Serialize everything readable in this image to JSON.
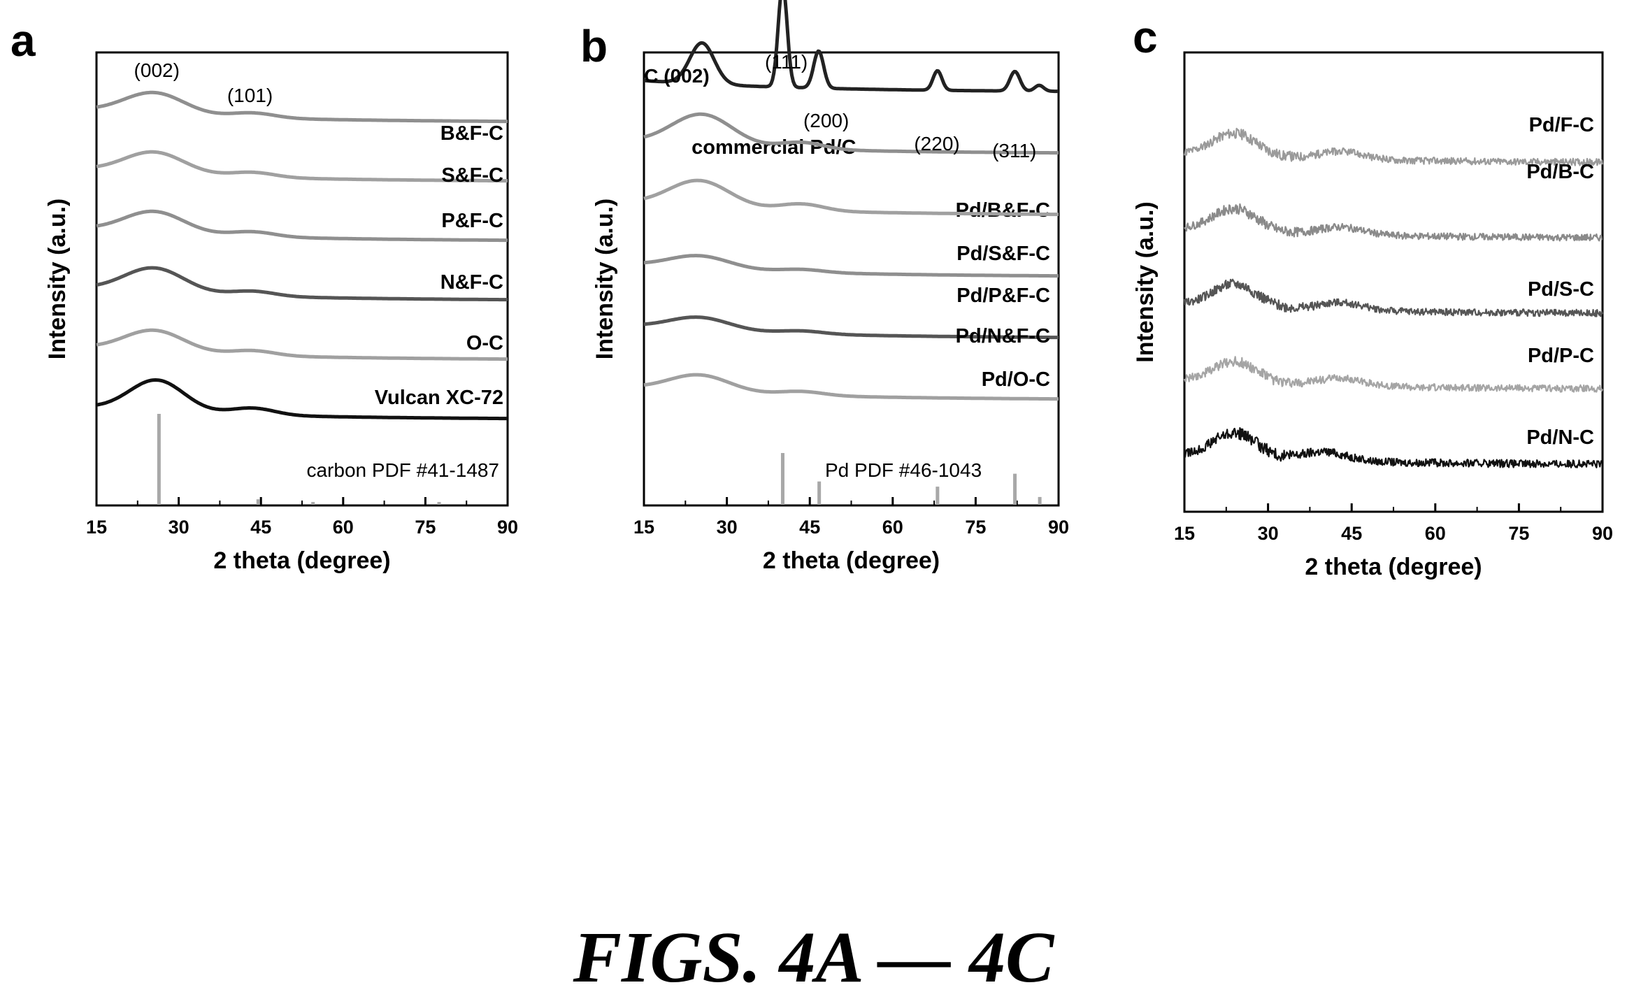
{
  "figure_caption": "FIGS. 4A — 4C",
  "colors": {
    "light": "#8a8a8a",
    "mid": "#a2a2a2",
    "dark": "#555555",
    "black": "#111111",
    "ref": "#a8a8a8"
  },
  "chart_data": [
    {
      "panel": "a",
      "type": "line",
      "xlabel": "2 theta (degree)",
      "ylabel": "Intensity (a.u.)",
      "xlim": [
        15,
        90
      ],
      "xticks": [
        "15",
        "30",
        "45",
        "60",
        "75",
        "90"
      ],
      "y_values": "arbitrary units (no numeric y axis; traces are vertically offset)",
      "peak_labels": [
        {
          "text": "(002)",
          "x": 26
        },
        {
          "text": "(101)",
          "x": 43
        }
      ],
      "series": [
        {
          "name": "B&F-C",
          "color": "#8f8f8f",
          "offset": 5,
          "peaks": [
            {
              "x": 25.5,
              "h": 0.22,
              "w": 5.5
            },
            {
              "x": 43.5,
              "h": 0.05,
              "w": 4
            }
          ],
          "noise": 0
        },
        {
          "name": "S&F-C",
          "color": "#a0a0a0",
          "offset": 4,
          "peaks": [
            {
              "x": 25.5,
              "h": 0.22,
              "w": 5.5
            },
            {
              "x": 43.5,
              "h": 0.05,
              "w": 4
            }
          ],
          "noise": 0
        },
        {
          "name": "P&F-C",
          "color": "#8f8f8f",
          "offset": 3,
          "peaks": [
            {
              "x": 25.5,
              "h": 0.22,
              "w": 5.5
            },
            {
              "x": 43.5,
              "h": 0.05,
              "w": 4
            }
          ],
          "noise": 0
        },
        {
          "name": "N&F-C",
          "color": "#555555",
          "offset": 2,
          "peaks": [
            {
              "x": 25.5,
              "h": 0.25,
              "w": 5.5
            },
            {
              "x": 43.5,
              "h": 0.05,
              "w": 4
            }
          ],
          "noise": 0
        },
        {
          "name": "O-C",
          "color": "#a0a0a0",
          "offset": 1,
          "peaks": [
            {
              "x": 25.5,
              "h": 0.22,
              "w": 5.5
            },
            {
              "x": 43.5,
              "h": 0.05,
              "w": 4
            }
          ],
          "noise": 0
        },
        {
          "name": "Vulcan XC-72",
          "color": "#111111",
          "offset": 0,
          "peaks": [
            {
              "x": 26,
              "h": 0.32,
              "w": 5
            },
            {
              "x": 43.5,
              "h": 0.07,
              "w": 4
            }
          ],
          "noise": 0
        }
      ],
      "reference": {
        "name": "carbon PDF #41-1487",
        "lines": [
          {
            "x": 26.4,
            "h": 1.0
          },
          {
            "x": 44.5,
            "h": 0.06
          },
          {
            "x": 54.5,
            "h": 0.03
          },
          {
            "x": 77.5,
            "h": 0.03
          }
        ]
      }
    },
    {
      "panel": "b",
      "type": "line",
      "xlabel": "2 theta (degree)",
      "ylabel": "Intensity (a.u.)",
      "xlim": [
        15,
        90
      ],
      "xticks": [
        "15",
        "30",
        "45",
        "60",
        "75",
        "90"
      ],
      "y_values": "arbitrary units (no numeric y axis; traces are vertically offset)",
      "peak_labels": [
        {
          "text": "C (002)",
          "x": 26
        },
        {
          "text": "(111)",
          "x": 40
        },
        {
          "text": "(200)",
          "x": 46.7
        },
        {
          "text": "(220)",
          "x": 68
        },
        {
          "text": "(311)",
          "x": 82
        }
      ],
      "series": [
        {
          "name": "commercial Pd/C",
          "color": "#222222",
          "offset": 5,
          "peaks": [
            {
              "x": 25.5,
              "h": 0.42,
              "w": 2.2
            },
            {
              "x": 40.1,
              "h": 1.05,
              "w": 0.8
            },
            {
              "x": 46.6,
              "h": 0.38,
              "w": 0.9
            },
            {
              "x": 68.1,
              "h": 0.2,
              "w": 0.8
            },
            {
              "x": 82.1,
              "h": 0.2,
              "w": 0.9
            },
            {
              "x": 86.5,
              "h": 0.06,
              "w": 0.8
            }
          ],
          "noise": 0
        },
        {
          "name": "Pd/B&F-C",
          "color": "#8f8f8f",
          "offset": 4,
          "peaks": [
            {
              "x": 25.5,
              "h": 0.32,
              "w": 5.5
            },
            {
              "x": 43.5,
              "h": 0.07,
              "w": 4
            }
          ],
          "noise": 0
        },
        {
          "name": "Pd/S&F-C",
          "color": "#a0a0a0",
          "offset": 3,
          "peaks": [
            {
              "x": 25,
              "h": 0.27,
              "w": 5.5
            },
            {
              "x": 43.5,
              "h": 0.07,
              "w": 4
            }
          ],
          "noise": 0
        },
        {
          "name": "Pd/P&F-C",
          "color": "#8f8f8f",
          "offset": 2,
          "peaks": [
            {
              "x": 25,
              "h": 0.13,
              "w": 5.5
            },
            {
              "x": 43.5,
              "h": 0.03,
              "w": 4
            }
          ],
          "noise": 0
        },
        {
          "name": "Pd/N&F-C",
          "color": "#555555",
          "offset": 1,
          "peaks": [
            {
              "x": 25,
              "h": 0.13,
              "w": 5.5
            },
            {
              "x": 43.5,
              "h": 0.03,
              "w": 4
            }
          ],
          "noise": 0
        },
        {
          "name": "Pd/O-C",
          "color": "#a0a0a0",
          "offset": 0,
          "peaks": [
            {
              "x": 25,
              "h": 0.17,
              "w": 5.5
            },
            {
              "x": 43.5,
              "h": 0.04,
              "w": 4
            }
          ],
          "noise": 0
        }
      ],
      "reference": {
        "name": "Pd PDF #46-1043",
        "lines": [
          {
            "x": 40.1,
            "h": 1.0
          },
          {
            "x": 46.7,
            "h": 0.45
          },
          {
            "x": 68.1,
            "h": 0.35
          },
          {
            "x": 82.1,
            "h": 0.6
          },
          {
            "x": 86.6,
            "h": 0.15
          }
        ]
      }
    },
    {
      "panel": "c",
      "type": "line",
      "xlabel": "2 theta (degree)",
      "ylabel": "Intensity (a.u.)",
      "xlim": [
        15,
        90
      ],
      "xticks": [
        "15",
        "30",
        "45",
        "60",
        "75",
        "90"
      ],
      "y_values": "arbitrary units (no numeric y axis; traces are vertically offset)",
      "peak_labels": [],
      "series": [
        {
          "name": "Pd/F-C",
          "color": "#9a9a9a",
          "offset": 4,
          "peaks": [
            {
              "x": 24,
              "h": 0.3,
              "w": 4
            },
            {
              "x": 43,
              "h": 0.1,
              "w": 4
            }
          ],
          "noise": 0.09
        },
        {
          "name": "Pd/B-C",
          "color": "#8a8a8a",
          "offset": 3,
          "peaks": [
            {
              "x": 24,
              "h": 0.3,
              "w": 4
            },
            {
              "x": 43,
              "h": 0.1,
              "w": 4
            }
          ],
          "noise": 0.09
        },
        {
          "name": "Pd/S-C",
          "color": "#555555",
          "offset": 2,
          "peaks": [
            {
              "x": 24,
              "h": 0.3,
              "w": 4
            },
            {
              "x": 43,
              "h": 0.1,
              "w": 4
            }
          ],
          "noise": 0.09
        },
        {
          "name": "Pd/P-C",
          "color": "#a5a5a5",
          "offset": 1,
          "peaks": [
            {
              "x": 24,
              "h": 0.27,
              "w": 4
            },
            {
              "x": 43,
              "h": 0.1,
              "w": 4
            }
          ],
          "noise": 0.09
        },
        {
          "name": "Pd/N-C",
          "color": "#111111",
          "offset": 0,
          "peaks": [
            {
              "x": 24,
              "h": 0.33,
              "w": 4
            },
            {
              "x": 40,
              "h": 0.12,
              "w": 4
            }
          ],
          "noise": 0.1
        }
      ],
      "reference": null
    }
  ]
}
